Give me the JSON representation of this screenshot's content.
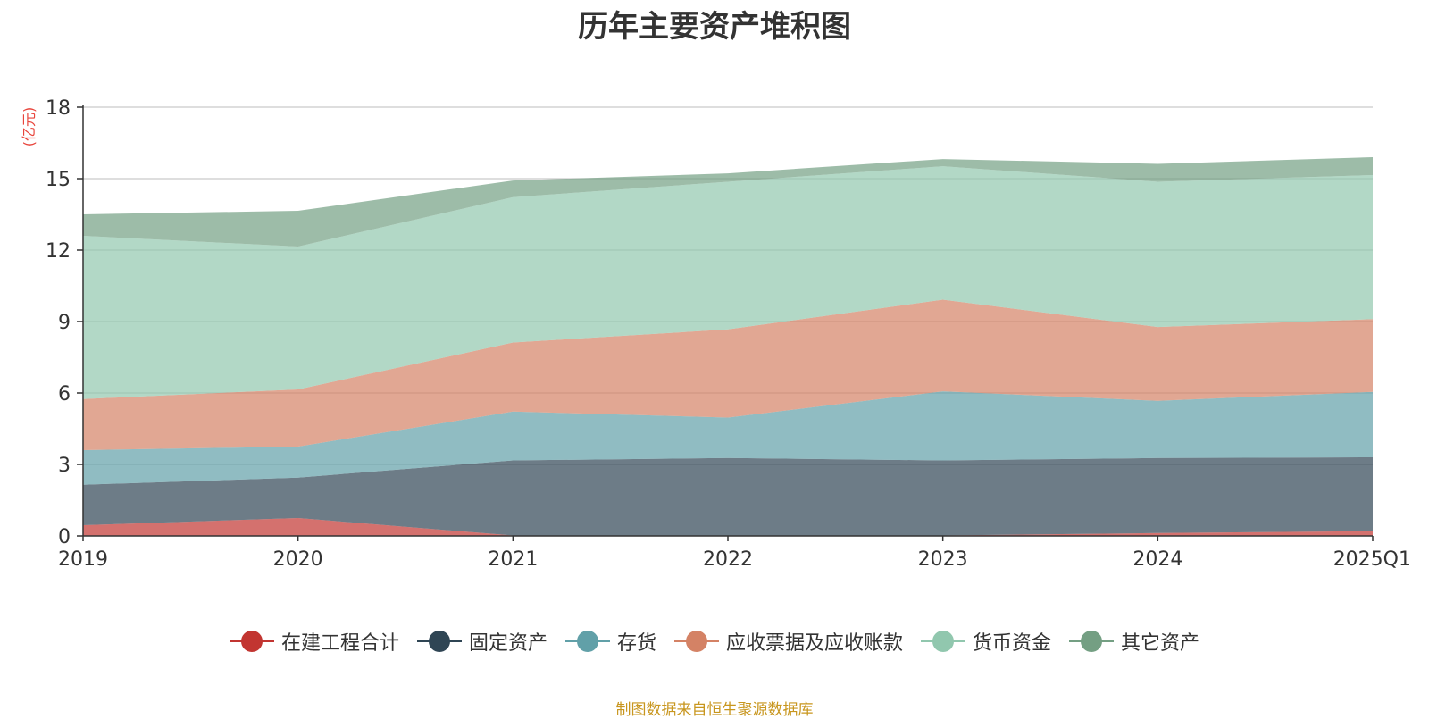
{
  "chart_data": {
    "type": "area",
    "stacked": true,
    "title": "历年主要资产堆积图",
    "yunit": "(亿元)",
    "categories": [
      "2019",
      "2020",
      "2021",
      "2022",
      "2023",
      "2024",
      "2025Q1"
    ],
    "ylim": [
      0,
      18
    ],
    "yticks": [
      "0",
      "3",
      "6",
      "9",
      "12",
      "15",
      "18"
    ],
    "grid": true,
    "legend_position": "bottom",
    "series": [
      {
        "name": "在建工程合计",
        "color": "#c23531",
        "values": [
          0.45,
          0.75,
          0.02,
          0.02,
          0.02,
          0.12,
          0.2
        ]
      },
      {
        "name": "固定资产",
        "color": "#2f4554",
        "values": [
          1.7,
          1.7,
          3.15,
          3.25,
          3.15,
          3.15,
          3.1
        ]
      },
      {
        "name": "存货",
        "color": "#61a0a8",
        "values": [
          1.45,
          1.3,
          2.05,
          1.7,
          2.9,
          2.4,
          2.75
        ]
      },
      {
        "name": "应收票据及应收账款",
        "color": "#d48265",
        "values": [
          2.15,
          2.4,
          2.9,
          3.7,
          3.85,
          3.1,
          3.05
        ]
      },
      {
        "name": "货币资金",
        "color": "#91c7ae",
        "values": [
          6.85,
          6.0,
          6.1,
          6.2,
          5.6,
          6.1,
          6.05
        ]
      },
      {
        "name": "其它资产",
        "color": "#749f83",
        "values": [
          0.9,
          1.5,
          0.7,
          0.35,
          0.3,
          0.75,
          0.75
        ]
      }
    ],
    "note": "制图数据来自恒生聚源数据库"
  }
}
